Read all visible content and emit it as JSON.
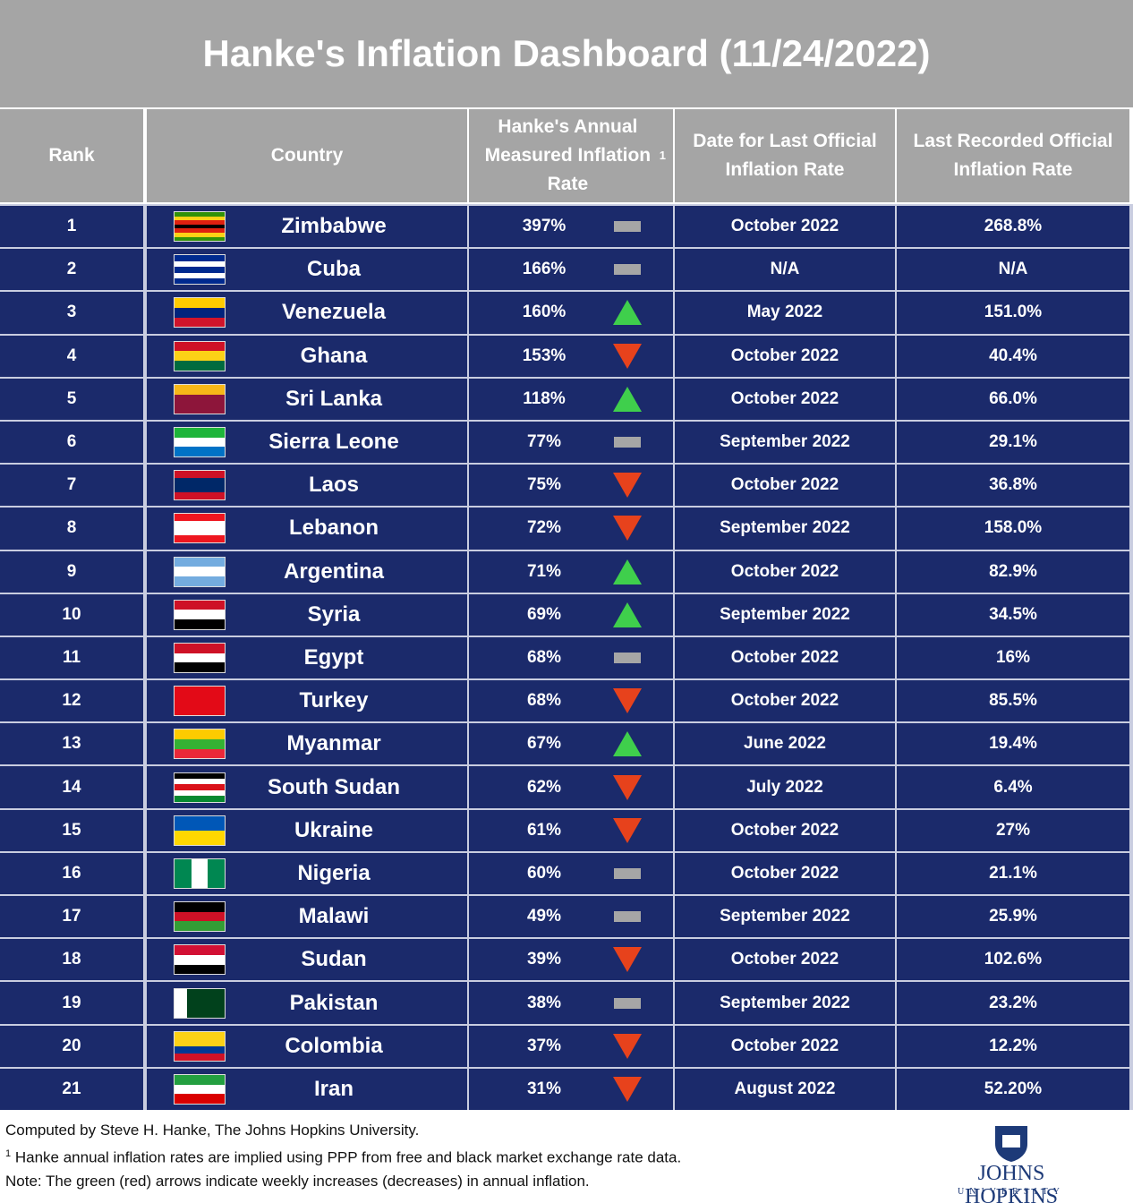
{
  "header": {
    "title": "Hanke's Inflation Dashboard (11/24/2022)"
  },
  "table": {
    "columns": [
      "Rank",
      "Country",
      "Hanke's Annual Measured Inflation Rate",
      "Date for Last Official Inflation Rate",
      "Last Recorded Official Inflation Rate"
    ],
    "column_note": "1",
    "rows": [
      [
        "1",
        "Zimbabwe",
        "397%",
        "October 2022",
        "268.8%"
      ],
      [
        "2",
        "Cuba",
        "166%",
        "N/A",
        "N/A"
      ],
      [
        "3",
        "Venezuela",
        "160%",
        "May 2022",
        "151.0%"
      ],
      [
        "4",
        "Ghana",
        "153%",
        "October 2022",
        "40.4%"
      ],
      [
        "5",
        "Sri Lanka",
        "118%",
        "October 2022",
        "66.0%"
      ],
      [
        "6",
        "Sierra Leone",
        "77%",
        "September 2022",
        "29.1%"
      ],
      [
        "7",
        "Laos",
        "75%",
        "October 2022",
        "36.8%"
      ],
      [
        "8",
        "Lebanon",
        "72%",
        "September 2022",
        "158.0%"
      ],
      [
        "9",
        "Argentina",
        "71%",
        "October 2022",
        "82.9%"
      ],
      [
        "10",
        "Syria",
        "69%",
        "September 2022",
        "34.5%"
      ],
      [
        "11",
        "Egypt",
        "68%",
        "October 2022",
        "16%"
      ],
      [
        "12",
        "Turkey",
        "68%",
        "October 2022",
        "85.5%"
      ],
      [
        "13",
        "Myanmar",
        "67%",
        "June 2022",
        "19.4%"
      ],
      [
        "14",
        "South Sudan",
        "62%",
        "July 2022",
        "6.4%"
      ],
      [
        "15",
        "Ukraine",
        "61%",
        "October 2022",
        "27%"
      ],
      [
        "16",
        "Nigeria",
        "60%",
        "October 2022",
        "21.1%"
      ],
      [
        "17",
        "Malawi",
        "49%",
        "September 2022",
        "25.9%"
      ],
      [
        "18",
        "Sudan",
        "39%",
        "October 2022",
        "102.6%"
      ],
      [
        "19",
        "Pakistan",
        "38%",
        "September 2022",
        "23.2%"
      ],
      [
        "20",
        "Colombia",
        "37%",
        "October 2022",
        "12.2%"
      ],
      [
        "21",
        "Iran",
        "31%",
        "August 2022",
        "52.20%"
      ]
    ],
    "trends": [
      "flat",
      "flat",
      "up",
      "down",
      "up",
      "flat",
      "down",
      "down",
      "up",
      "up",
      "flat",
      "down",
      "up",
      "down",
      "down",
      "flat",
      "flat",
      "down",
      "flat",
      "down",
      "down"
    ]
  },
  "footer": {
    "credit": "Computed by Steve H. Hanke, The Johns Hopkins University.",
    "footnote_mark": "1",
    "footnote": "Hanke annual inflation rates are implied using PPP from free and black market exchange rate data.",
    "note": "Note: The green (red) arrows indicate weekly increases (decreases) in annual inflation.",
    "logo": "JOHNS HOPKINS",
    "logo_sub": "UNIVERSITY"
  }
}
